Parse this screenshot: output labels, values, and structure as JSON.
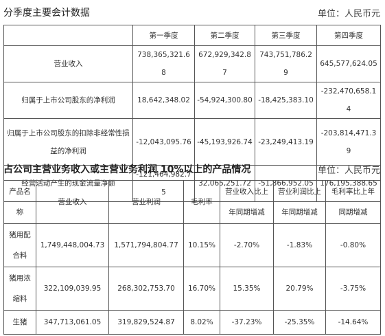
{
  "section1": {
    "title": "分季度主要会计数据",
    "unit": "单位：人民币元",
    "columns": [
      "",
      "第一季度",
      "第二季度",
      "第三季度",
      "第四季度"
    ],
    "rows": [
      [
        "营业收入",
        "738,365,321.68",
        "672,929,342.87",
        "743,751,786.29",
        "645,577,624.05"
      ],
      [
        "归属于上市公司股东的净利润",
        "18,642,348.02",
        "-54,924,300.80",
        "-18,425,383.10",
        "-232,470,658.14"
      ],
      [
        "归属于上市公司股东的扣除非经常性损益的净利润",
        "-12,043,095.76",
        "-45,193,926.74",
        "-23,249,413.19",
        "-203,814,471.39"
      ],
      [
        "经营活动产生的现金流量净额",
        "-121,464,982.75",
        "32,065,251.72",
        "-51,866,952.05",
        "176,195,388.65"
      ]
    ]
  },
  "section2": {
    "title": "占公司主营业务收入或主营业务利润 10%以上的产品情况",
    "unit": "单位：人民币元",
    "columns": [
      "产品名称",
      "营业收入",
      "营业利润",
      "毛利率",
      "营业收入比上年同期增减",
      "营业利润比上年同期增减",
      "毛利率比上年同期增减"
    ],
    "rows": [
      [
        "猪用配合料",
        "1,749,448,004.73",
        "1,571,794,804.77",
        "10.15%",
        "-2.70%",
        "-1.83%",
        "-0.80%"
      ],
      [
        "猪用浓缩料",
        "322,109,039.95",
        "268,302,753.70",
        "16.70%",
        "15.35%",
        "20.79%",
        "-3.75%"
      ],
      [
        "生猪",
        "347,713,061.05",
        "319,829,524.87",
        "8.02%",
        "-37.23%",
        "-25.35%",
        "-14.64%"
      ]
    ]
  }
}
